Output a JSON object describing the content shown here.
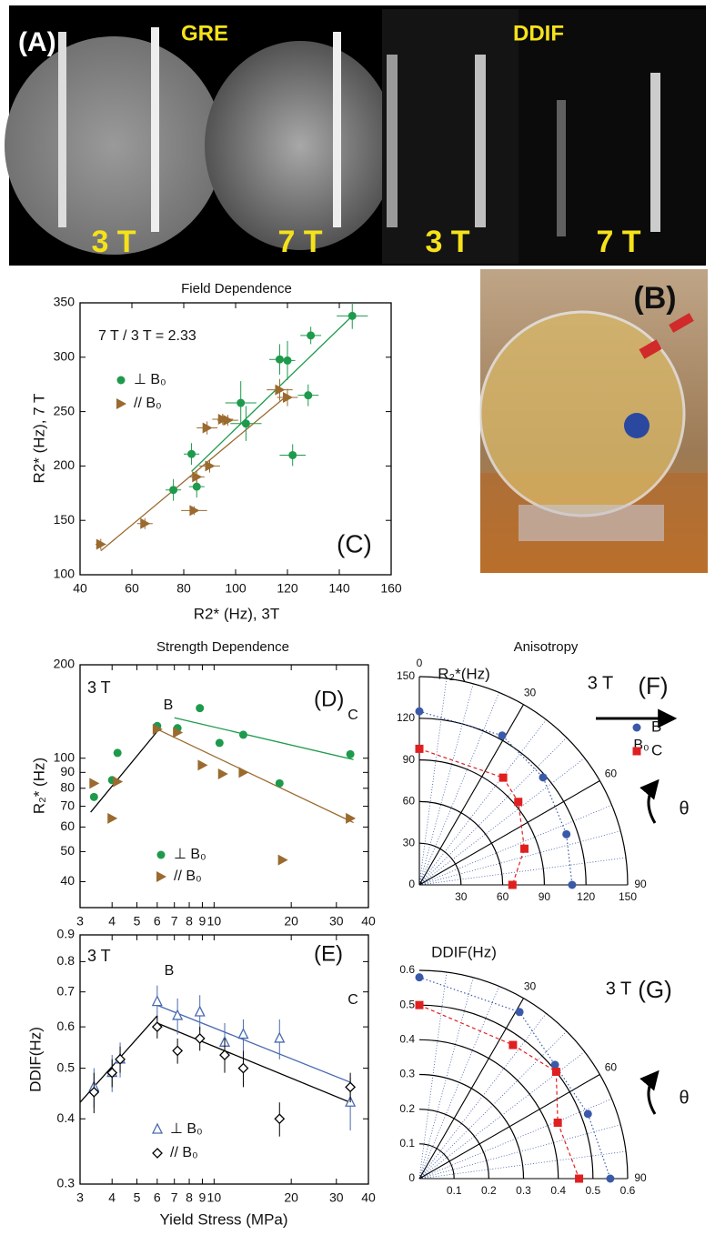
{
  "panel_a": {
    "label": "(A)",
    "gre": "GRE",
    "ddif": "DDIF",
    "fields": [
      "3 T",
      "7 T",
      "3 T",
      "7 T"
    ]
  },
  "panel_b": {
    "label": "(B)"
  },
  "chart_data": [
    {
      "type": "scatter",
      "title": "Field Dependence",
      "x_label": "R2* (Hz), 3T",
      "y_label": "R2* (Hz), 7 T",
      "xlim": [
        40,
        160
      ],
      "xticks": [
        40,
        60,
        80,
        100,
        120,
        140,
        160
      ],
      "ylim": [
        100,
        350
      ],
      "yticks": [
        100,
        150,
        200,
        250,
        300,
        350
      ],
      "annotations": [
        "7 T / 3 T = 2.33",
        "(C)"
      ],
      "series": [
        {
          "name": "⊥ B₀",
          "color": "#1e9a4c",
          "marker": "circle",
          "x": [
            145,
            129,
            117,
            120,
            102,
            104,
            128,
            122,
            83,
            76,
            85
          ],
          "y": [
            338,
            320,
            298,
            297,
            258,
            239,
            265,
            210,
            211,
            178,
            181
          ],
          "xerr": [
            6,
            4,
            4,
            3,
            6,
            6,
            4,
            5,
            3,
            3,
            3
          ],
          "yerr": [
            12,
            8,
            14,
            18,
            20,
            16,
            10,
            10,
            10,
            10,
            10
          ]
        },
        {
          "name": "// B₀",
          "color": "#9a6a2e",
          "marker": "triangle",
          "x": [
            48,
            65,
            84,
            85,
            90,
            89,
            95,
            97,
            117,
            120
          ],
          "y": [
            128,
            147,
            159,
            190,
            200,
            235,
            243,
            242,
            270,
            263
          ],
          "xerr": [
            2,
            3,
            5,
            3,
            4,
            4,
            4,
            4,
            5,
            4
          ],
          "yerr": [
            5,
            5,
            4,
            6,
            6,
            6,
            5,
            5,
            10,
            8
          ]
        }
      ],
      "lines": [
        {
          "color": "#1e9a4c",
          "x": [
            83,
            145
          ],
          "y": [
            195,
            338
          ]
        },
        {
          "color": "#9a6a2e",
          "x": [
            48,
            120
          ],
          "y": [
            122,
            265
          ]
        }
      ]
    },
    {
      "type": "scatter",
      "title": "Strength Dependence",
      "y_label": "R₂* (Hz)",
      "xlog": true,
      "ylog": true,
      "xlim": [
        3,
        40
      ],
      "xticks": [
        3,
        4,
        5,
        6,
        7,
        8,
        9,
        10,
        20,
        30,
        40
      ],
      "ylim": [
        33,
        200
      ],
      "yticks": [
        40,
        50,
        60,
        70,
        80,
        90,
        100,
        200
      ],
      "annotations": [
        "3 T",
        "B",
        "C",
        "(D)"
      ],
      "series": [
        {
          "name": "⊥ B₀",
          "color": "#1e9a4c",
          "marker": "circle",
          "x": [
            3.4,
            4.0,
            4.2,
            6,
            7.2,
            8.8,
            10.5,
            13,
            18,
            34
          ],
          "y": [
            75,
            85,
            104,
            127,
            125,
            145,
            112,
            119,
            83,
            103
          ]
        },
        {
          "name": "// B₀",
          "color": "#9a6a2e",
          "marker": "triangle",
          "x": [
            3.4,
            4.0,
            4.2,
            6,
            7.2,
            9,
            10.8,
            13,
            18.5,
            34
          ],
          "y": [
            83,
            64,
            84,
            124,
            121,
            95,
            89,
            90,
            47,
            64
          ]
        }
      ],
      "lines": [
        {
          "color": "#000000",
          "x": [
            3.3,
            6
          ],
          "y": [
            67,
            122
          ]
        },
        {
          "color": "#1e9a4c",
          "x": [
            7,
            35
          ],
          "y": [
            135,
            99
          ]
        },
        {
          "color": "#9a6a2e",
          "x": [
            6,
            35
          ],
          "y": [
            124,
            62
          ]
        }
      ]
    },
    {
      "type": "scatter",
      "x_label": "Yield Stress (MPa)",
      "y_label": "DDIF(Hz)",
      "xlog": true,
      "ylog": true,
      "xlim": [
        3,
        40
      ],
      "xticks": [
        3,
        4,
        5,
        6,
        7,
        8,
        9,
        10,
        20,
        30,
        40
      ],
      "ylim": [
        0.3,
        0.9
      ],
      "yticks": [
        0.3,
        0.4,
        0.5,
        0.6,
        0.7,
        0.8,
        0.9
      ],
      "annotations": [
        "3 T",
        "B",
        "C",
        "(E)"
      ],
      "series": [
        {
          "name": "⊥ B₀",
          "color": "#4a6ab0",
          "marker": "triangle-open",
          "x": [
            3.4,
            4,
            4.3,
            6,
            7.2,
            8.8,
            11,
            13,
            18,
            34
          ],
          "y": [
            0.46,
            0.49,
            0.52,
            0.67,
            0.63,
            0.64,
            0.56,
            0.58,
            0.57,
            0.43
          ],
          "yerr": [
            0.04,
            0.04,
            0.04,
            0.05,
            0.05,
            0.05,
            0.05,
            0.04,
            0.05,
            0.05
          ]
        },
        {
          "name": "// B₀",
          "color": "#000000",
          "marker": "diamond-open",
          "x": [
            3.4,
            4,
            4.3,
            6,
            7.2,
            8.8,
            11,
            13,
            18,
            34
          ],
          "y": [
            0.45,
            0.49,
            0.52,
            0.6,
            0.54,
            0.57,
            0.53,
            0.5,
            0.4,
            0.46
          ],
          "yerr": [
            0.04,
            0.03,
            0.03,
            0.03,
            0.03,
            0.03,
            0.04,
            0.04,
            0.03,
            0.03
          ]
        }
      ],
      "lines": [
        {
          "color": "#000000",
          "x": [
            3,
            6
          ],
          "y": [
            0.43,
            0.63
          ]
        },
        {
          "color": "#4a6ab0",
          "x": [
            6,
            34
          ],
          "y": [
            0.66,
            0.47
          ]
        },
        {
          "color": "#000000",
          "x": [
            6,
            34
          ],
          "y": [
            0.61,
            0.43
          ]
        }
      ]
    },
    {
      "type": "polar",
      "title": "Anisotropy",
      "r_label": "R₂*(Hz)",
      "rlim": [
        0,
        150
      ],
      "rticks": [
        0,
        30,
        60,
        90,
        120,
        150
      ],
      "angle_ticks": [
        0,
        30,
        60,
        90
      ],
      "annotations": [
        "3 T",
        "(F)",
        "B₀",
        "θ"
      ],
      "series": [
        {
          "name": "B",
          "color": "#3a5aa8",
          "marker": "circle",
          "curve": "dotted",
          "theta": [
            0,
            29,
            49,
            71,
            90
          ],
          "r": [
            125,
            123,
            118,
            112,
            110
          ]
        },
        {
          "name": "C",
          "color": "#e02020",
          "marker": "square",
          "curve": "dashed",
          "theta": [
            0,
            38,
            50,
            71,
            90
          ],
          "r": [
            98,
            98,
            93,
            80,
            67
          ]
        }
      ]
    },
    {
      "type": "polar",
      "r_label": "DDIF(Hz)",
      "rlim": [
        0,
        0.6
      ],
      "rticks": [
        0,
        0.1,
        0.2,
        0.3,
        0.4,
        0.5,
        0.6
      ],
      "angle_ticks": [
        30,
        60,
        90
      ],
      "annotations": [
        "3 T",
        "(G)",
        "θ"
      ],
      "series": [
        {
          "color": "#3a5aa8",
          "marker": "circle",
          "curve": "dotted",
          "theta": [
            0,
            31,
            50,
            69,
            90
          ],
          "r": [
            0.58,
            0.56,
            0.51,
            0.52,
            0.55
          ]
        },
        {
          "color": "#e02020",
          "marker": "square",
          "curve": "dashed",
          "theta": [
            0,
            35,
            52,
            68,
            90
          ],
          "r": [
            0.5,
            0.47,
            0.5,
            0.43,
            0.46
          ]
        }
      ]
    }
  ]
}
